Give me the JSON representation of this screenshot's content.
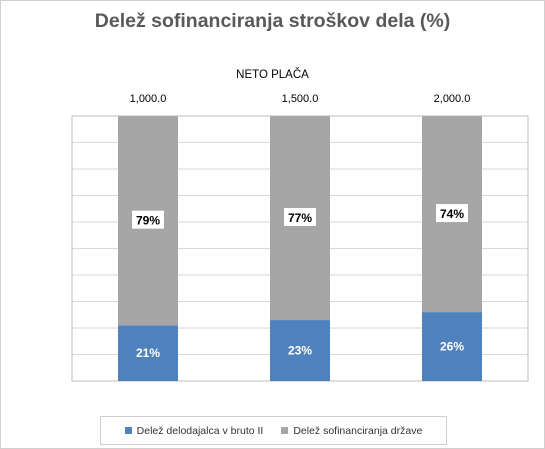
{
  "chart_data": {
    "type": "bar",
    "stacked": true,
    "percent": true,
    "title": "Delež sofinanciranja  stroškov dela (%)",
    "xlabel": "NETO PLAČA",
    "x_axis_position": "top",
    "categories": [
      "1,000.0",
      "1,500.0",
      "2,000.0"
    ],
    "series": [
      {
        "name": "Delež delodajalca v bruto II",
        "values": [
          21,
          23,
          26
        ],
        "color": "#4f81bd",
        "labels": [
          "21%",
          "23%",
          "26%"
        ]
      },
      {
        "name": "Delež sofinanciranja države",
        "values": [
          79,
          77,
          74
        ],
        "color": "#a6a6a6",
        "labels": [
          "79%",
          "77%",
          "74%"
        ]
      }
    ],
    "ylim": [
      0,
      100
    ],
    "grid": true,
    "legend": "bottom"
  }
}
